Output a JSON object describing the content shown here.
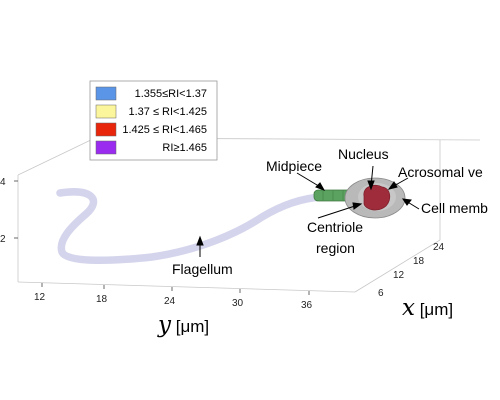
{
  "legend": {
    "items": [
      {
        "label": "1.355≤RI<1.37",
        "color": "#5b95e8"
      },
      {
        "label": "1.37 ≤ RI<1.425",
        "color": "#fbf59c"
      },
      {
        "label": "1.425 ≤ RI<1.465",
        "color": "#e8260c"
      },
      {
        "label": "RI≥1.465",
        "color": "#9a2cf0"
      }
    ]
  },
  "labels": {
    "midpiece": "Midpiece",
    "nucleus": "Nucleus",
    "acrosomal": "Acrosomal ve",
    "cell_membrane": "Cell memb",
    "centriole_line1": "Centriole",
    "centriole_line2": "region",
    "flagellum": "Flagellum"
  },
  "axes": {
    "y": {
      "var": "y",
      "unit": " [μm]",
      "ticks": [
        "12",
        "18",
        "24",
        "30",
        "36"
      ]
    },
    "x": {
      "var": "x",
      "unit": " [μm]",
      "ticks": [
        "6",
        "12",
        "18",
        "24"
      ]
    },
    "z": {
      "ticks": [
        "4",
        "2"
      ]
    }
  },
  "colors": {
    "flagellum": "#d4d4ec",
    "midpiece": "#5ba15f",
    "cell": "#b8b8b8",
    "nucleus": "#9e2c3a"
  }
}
